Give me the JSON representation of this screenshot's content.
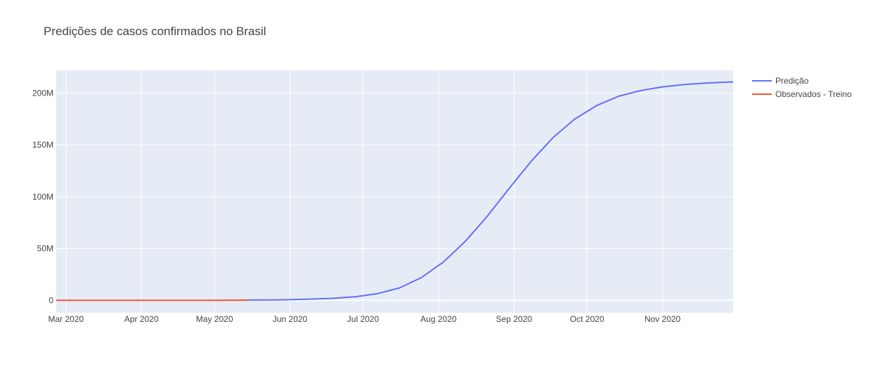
{
  "chart_data": {
    "type": "line",
    "title": "Predições de casos confirmados no Brasil",
    "xlabel": "",
    "ylabel": "",
    "x_type": "date",
    "xlim": [
      "2020-02-26",
      "2020-11-30"
    ],
    "ylim": [
      -12000000,
      222000000
    ],
    "x_ticks": [
      {
        "date": "2020-03-01",
        "label": "Mar 2020"
      },
      {
        "date": "2020-04-01",
        "label": "Apr 2020"
      },
      {
        "date": "2020-05-01",
        "label": "May 2020"
      },
      {
        "date": "2020-06-01",
        "label": "Jun 2020"
      },
      {
        "date": "2020-07-01",
        "label": "Jul 2020"
      },
      {
        "date": "2020-08-01",
        "label": "Aug 2020"
      },
      {
        "date": "2020-09-01",
        "label": "Sep 2020"
      },
      {
        "date": "2020-10-01",
        "label": "Oct 2020"
      },
      {
        "date": "2020-11-01",
        "label": "Nov 2020"
      }
    ],
    "y_ticks": [
      {
        "value": 0,
        "label": "0"
      },
      {
        "value": 50000000,
        "label": "50M"
      },
      {
        "value": 100000000,
        "label": "100M"
      },
      {
        "value": 150000000,
        "label": "150M"
      },
      {
        "value": 200000000,
        "label": "200M"
      }
    ],
    "grid": true,
    "legend_position": "top-right",
    "series": [
      {
        "name": "Predição",
        "color": "#636efa",
        "x": [
          "2020-05-15",
          "2020-05-25",
          "2020-06-01",
          "2020-06-10",
          "2020-06-19",
          "2020-06-28",
          "2020-07-07",
          "2020-07-16",
          "2020-07-25",
          "2020-08-03",
          "2020-08-12",
          "2020-08-21",
          "2020-08-30",
          "2020-09-08",
          "2020-09-17",
          "2020-09-26",
          "2020-10-05",
          "2020-10-14",
          "2020-10-23",
          "2020-11-01",
          "2020-11-10",
          "2020-11-19",
          "2020-11-30"
        ],
        "y": [
          300000,
          400000,
          600000,
          1200000,
          2000000,
          3500000,
          6500000,
          12000000,
          22000000,
          37000000,
          57000000,
          81000000,
          108000000,
          134000000,
          157000000,
          175000000,
          188000000,
          197000000,
          202500000,
          206000000,
          208300000,
          209700000,
          210800000
        ]
      },
      {
        "name": "Observados - Treino",
        "color": "#ef553b",
        "x": [
          "2020-02-26",
          "2020-03-15",
          "2020-04-01",
          "2020-04-15",
          "2020-05-01",
          "2020-05-15"
        ],
        "y": [
          0,
          1000,
          6000,
          25000,
          90000,
          200000
        ]
      }
    ]
  }
}
